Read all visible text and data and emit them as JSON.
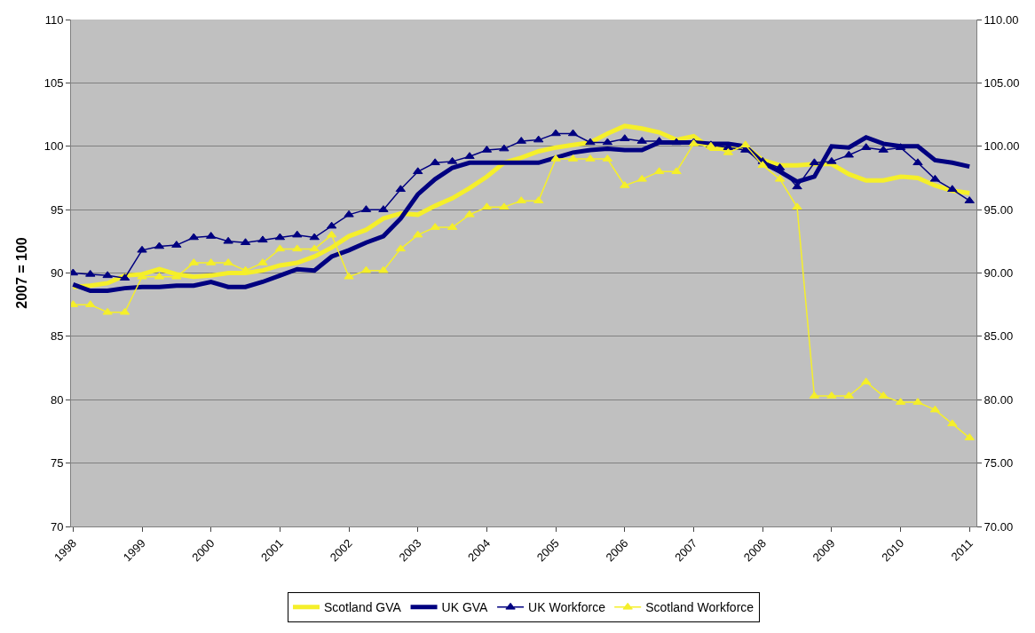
{
  "chart_data": {
    "type": "line",
    "ylabel": "2007 = 100",
    "x": [
      1998,
      1998.25,
      1998.5,
      1998.75,
      1999,
      1999.25,
      1999.5,
      1999.75,
      2000,
      2000.25,
      2000.5,
      2000.75,
      2001,
      2001.25,
      2001.5,
      2001.75,
      2002,
      2002.25,
      2002.5,
      2002.75,
      2003,
      2003.25,
      2003.5,
      2003.75,
      2004,
      2004.25,
      2004.5,
      2004.75,
      2005,
      2005.25,
      2005.5,
      2005.75,
      2006,
      2006.25,
      2006.5,
      2006.75,
      2007,
      2007.25,
      2007.5,
      2007.75,
      2008,
      2008.25,
      2008.5,
      2008.75,
      2009,
      2009.25,
      2009.5,
      2009.75,
      2010,
      2010.25,
      2010.5,
      2010.75,
      2011
    ],
    "series": [
      {
        "name": "Scotland GVA",
        "color": "#f5ef2a",
        "marker": "none",
        "values": [
          88.9,
          89.0,
          89.2,
          89.8,
          89.9,
          90.3,
          89.9,
          89.7,
          89.8,
          90.0,
          90.0,
          90.2,
          90.6,
          90.8,
          91.3,
          92.0,
          92.9,
          93.4,
          94.3,
          94.7,
          94.6,
          95.3,
          95.9,
          96.7,
          97.6,
          98.7,
          99.1,
          99.6,
          99.9,
          100.1,
          100.3,
          101.0,
          101.6,
          101.4,
          101.1,
          100.5,
          100.8,
          99.8,
          99.8,
          100.0,
          98.9,
          98.5,
          98.5,
          98.6,
          98.6,
          97.8,
          97.3,
          97.3,
          97.6,
          97.5,
          96.9,
          96.5,
          96.3
        ]
      },
      {
        "name": "UK GVA",
        "color": "#000080",
        "marker": "none",
        "values": [
          89.1,
          88.6,
          88.6,
          88.8,
          88.9,
          88.9,
          89.0,
          89.0,
          89.3,
          88.9,
          88.9,
          89.3,
          89.8,
          90.3,
          90.2,
          91.3,
          91.8,
          92.4,
          92.9,
          94.3,
          96.2,
          97.4,
          98.3,
          98.7,
          98.7,
          98.7,
          98.7,
          98.7,
          99.1,
          99.5,
          99.7,
          99.8,
          99.7,
          99.7,
          100.3,
          100.3,
          100.3,
          100.2,
          100.2,
          100.0,
          98.7,
          98.0,
          97.2,
          97.6,
          100.0,
          99.9,
          100.7,
          100.2,
          100.0,
          100.0,
          98.9,
          98.7,
          98.4
        ]
      },
      {
        "name": "UK Workforce",
        "color": "#000080",
        "marker": "triangle",
        "values": [
          90.0,
          89.9,
          89.8,
          89.6,
          91.8,
          92.1,
          92.2,
          92.8,
          92.9,
          92.5,
          92.4,
          92.6,
          92.8,
          93.0,
          92.8,
          93.7,
          94.6,
          95.0,
          95.0,
          96.6,
          98.0,
          98.7,
          98.8,
          99.2,
          99.7,
          99.8,
          100.4,
          100.5,
          101.0,
          101.0,
          100.3,
          100.3,
          100.6,
          100.4,
          100.4,
          100.3,
          100.3,
          100.1,
          99.9,
          99.7,
          98.8,
          98.3,
          96.8,
          98.7,
          98.8,
          99.3,
          99.9,
          99.7,
          99.9,
          98.7,
          97.4,
          96.6,
          95.7
        ]
      },
      {
        "name": "Scotland Workforce",
        "color": "#f5ef2a",
        "marker": "triangle",
        "values": [
          87.5,
          87.5,
          86.9,
          86.9,
          89.7,
          89.7,
          89.7,
          90.8,
          90.8,
          90.8,
          90.2,
          90.8,
          91.9,
          91.9,
          91.9,
          93.0,
          89.7,
          90.2,
          90.2,
          91.9,
          93.0,
          93.6,
          93.6,
          94.6,
          95.2,
          95.2,
          95.7,
          95.7,
          99.0,
          99.0,
          99.0,
          99.0,
          96.9,
          97.4,
          98.0,
          98.0,
          100.2,
          100.0,
          99.5,
          100.1,
          98.5,
          97.4,
          95.2,
          80.3,
          80.3,
          80.3,
          81.4,
          80.3,
          79.8,
          79.8,
          79.2,
          78.1,
          77.0
        ]
      }
    ],
    "xlim": [
      1997.97,
      2011.1
    ],
    "xticks": [
      1998,
      1999,
      2000,
      2001,
      2002,
      2003,
      2004,
      2005,
      2006,
      2007,
      2008,
      2009,
      2010,
      2011
    ],
    "ylim": [
      70,
      110
    ],
    "yticks": [
      70,
      75,
      80,
      85,
      90,
      95,
      100,
      105,
      110
    ],
    "y2lim": [
      70,
      110
    ],
    "y2ticks": [
      {
        "value": 70,
        "label": "70.00"
      },
      {
        "value": 75,
        "label": "75.00"
      },
      {
        "value": 80,
        "label": "80.00"
      },
      {
        "value": 85,
        "label": "85.00"
      },
      {
        "value": 90,
        "label": "90.00"
      },
      {
        "value": 95,
        "label": "95.00"
      },
      {
        "value": 100,
        "label": "100.00"
      },
      {
        "value": 105,
        "label": "105.00"
      },
      {
        "value": 110,
        "label": "110.00"
      }
    ],
    "grid": "y",
    "legend": "bottom"
  }
}
